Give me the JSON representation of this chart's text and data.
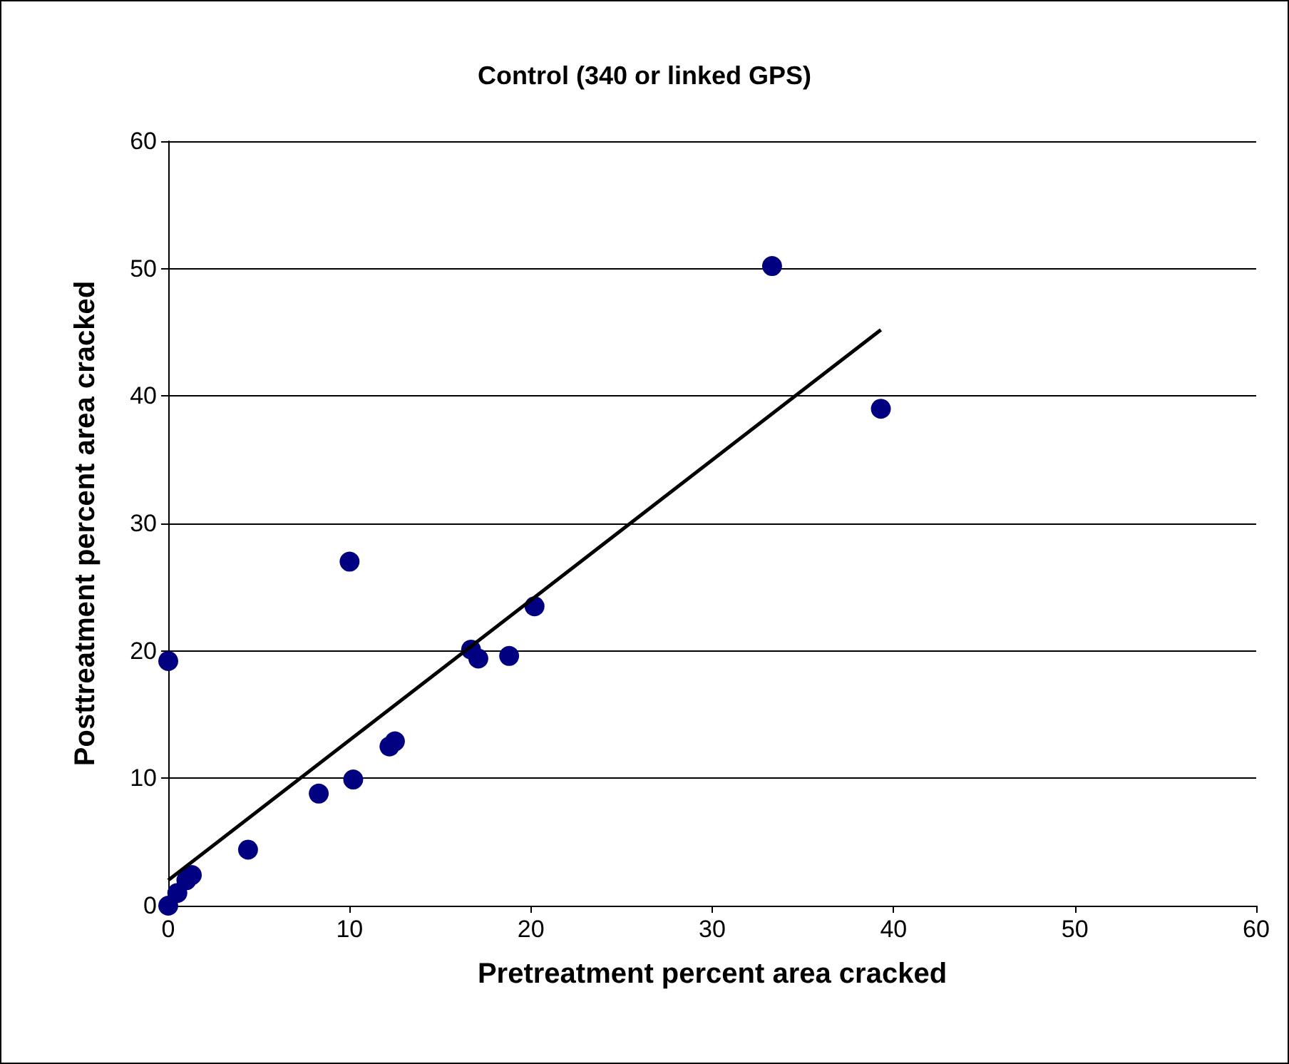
{
  "chart_data": {
    "type": "scatter",
    "title": "Control (340 or linked GPS)",
    "xlabel": "Pretreatment percent area cracked",
    "ylabel": "Posttreatment percent area cracked",
    "xlim": [
      0,
      60
    ],
    "xticks": [
      0,
      10,
      20,
      30,
      40,
      50,
      60
    ],
    "ylim": [
      0,
      60
    ],
    "yticks": [
      0,
      10,
      20,
      30,
      40,
      50,
      60
    ],
    "grid": "y",
    "marker": "circle",
    "series": [
      {
        "color": "#000080",
        "x": [
          33.3,
          39.3,
          10.0,
          0,
          20.2,
          16.7,
          17.1,
          18.8,
          12.2,
          12.5,
          10.2,
          8.3,
          4.4,
          1.3,
          1.0,
          0.5,
          0
        ],
        "values": [
          50.2,
          39.0,
          27.0,
          19.2,
          23.5,
          20.1,
          19.4,
          19.6,
          12.5,
          12.9,
          9.9,
          8.8,
          4.4,
          2.4,
          2.0,
          1.0,
          0
        ]
      },
      {
        "type": "line",
        "color": "#000000",
        "marker": "none",
        "x": [
          0,
          39.3
        ],
        "values": [
          2.0,
          45.2
        ]
      }
    ]
  }
}
